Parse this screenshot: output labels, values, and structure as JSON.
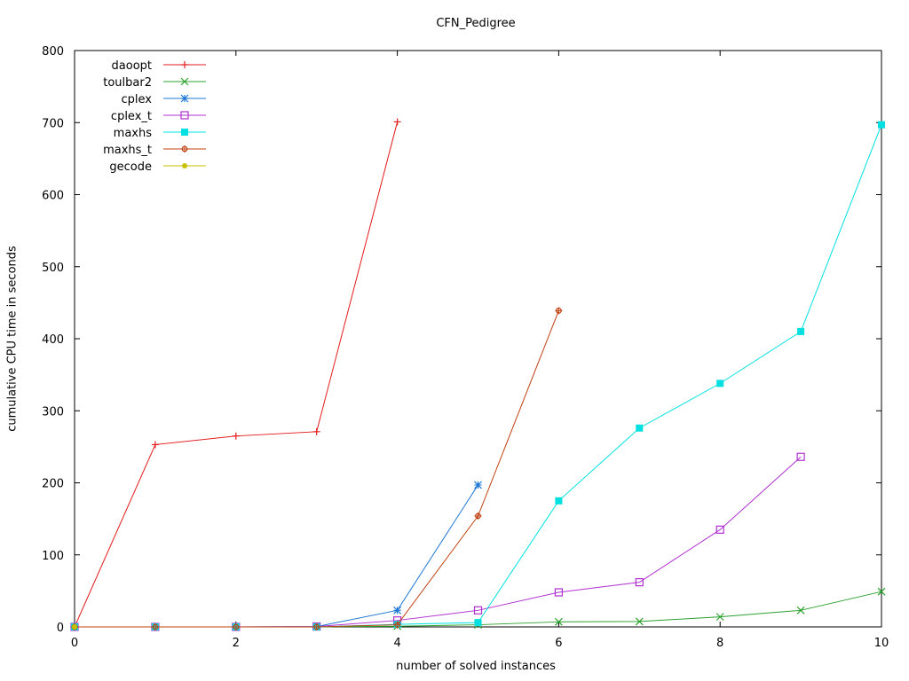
{
  "chart_data": {
    "type": "line",
    "title": "CFN_Pedigree",
    "xlabel": "number of solved instances",
    "ylabel": "cumulative CPU time in seconds",
    "xlim": [
      0,
      10
    ],
    "ylim": [
      0,
      800
    ],
    "xticks": [
      0,
      2,
      4,
      6,
      8,
      10
    ],
    "yticks": [
      0,
      100,
      200,
      300,
      400,
      500,
      600,
      700,
      800
    ],
    "grid": false,
    "legend_position": "top-left",
    "series": [
      {
        "name": "daoopt",
        "color": "#e41a1c",
        "marker": "plus",
        "x": [
          0,
          1,
          2,
          3,
          4
        ],
        "values": [
          0,
          253,
          265,
          271,
          701
        ]
      },
      {
        "name": "toulbar2",
        "color": "#2ca02c",
        "marker": "x",
        "x": [
          0,
          1,
          2,
          3,
          4,
          5,
          6,
          7,
          8,
          9,
          10
        ],
        "values": [
          0,
          0,
          0,
          0,
          1,
          3,
          7,
          7.5,
          14,
          23,
          49
        ]
      },
      {
        "name": "cplex",
        "color": "#1f77d4",
        "marker": "star",
        "x": [
          0,
          1,
          2,
          3,
          4,
          5
        ],
        "values": [
          0,
          0,
          0,
          0.5,
          23,
          197
        ]
      },
      {
        "name": "cplex_t",
        "color": "#b030d0",
        "marker": "open-square",
        "x": [
          0,
          1,
          2,
          3,
          4,
          5,
          6,
          7,
          8,
          9
        ],
        "values": [
          0,
          0,
          0,
          0.5,
          9,
          23,
          48,
          62,
          135,
          236
        ]
      },
      {
        "name": "maxhs",
        "color": "#00e0e0",
        "marker": "filled-square",
        "x": [
          0,
          1,
          2,
          3,
          4,
          5,
          6,
          7,
          8,
          9,
          10
        ],
        "values": [
          0,
          0,
          0,
          0,
          3.5,
          6,
          175,
          276,
          338,
          410,
          697
        ]
      },
      {
        "name": "maxhs_t",
        "color": "#c04010",
        "marker": "open-circle",
        "x": [
          0,
          1,
          2,
          3,
          4,
          5,
          6
        ],
        "values": [
          0,
          0,
          0,
          0,
          3,
          154,
          439
        ]
      },
      {
        "name": "gecode",
        "color": "#c8c000",
        "marker": "filled-circle",
        "x": [
          0
        ],
        "values": [
          0
        ]
      }
    ]
  }
}
